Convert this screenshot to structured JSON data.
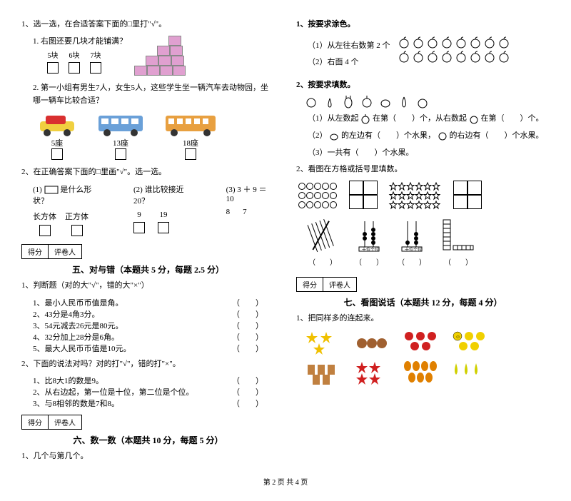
{
  "left": {
    "q1": "1、选一选，在合适答案下面的□里打\"√\"。",
    "q1_1": "1. 右图还要几块才能铺满？",
    "q1_1_opts": [
      "5块",
      "6块",
      "7块"
    ],
    "q1_2": "2. 第一小组有男生7人，女生5人，这些学生坐一辆汽车去动物园，坐哪一辆车比较合适？",
    "seats": [
      "5座",
      "13座",
      "18座"
    ],
    "q2": "2、在正确答案下面的□里画\"√\"。选一选。",
    "q2_1_prefix": "(1) ",
    "q2_1": "是什么形状？",
    "q2_2": "(2) 谁比较接近20？",
    "q2_3": "(3) 3 ＋ 9 ＝ 10",
    "q2_opts1": [
      "长方体",
      "正方体"
    ],
    "q2_opts2": [
      "9",
      "19"
    ],
    "q2_opts3": [
      "8",
      "7"
    ],
    "score_labels": [
      "得分",
      "评卷人"
    ],
    "sec5": "五、对与错（本题共 5 分，每题 2.5 分）",
    "tf_intro": "1、判断题（对的大\"√\"，错的大\"×\"）",
    "tf1": "1、最小人民币币值是角。",
    "tf2": "2、43分是4角3分。",
    "tf3": "3、54元减去26元是80元。",
    "tf4": "4、32分加上28分是6角。",
    "tf5": "5、最大人民币币值是10元。",
    "tf_intro2": "2、下面的说法对吗？对的打\"√\"，错的打\"×\"。",
    "tf6": "1、比8大1的数是9。",
    "tf7": "2、从右边起，第一位是十位，第二位是个位。",
    "tf8": "3、与8相邻的数是7和8。",
    "sec6": "六、数一数（本题共 10 分，每题 5 分）",
    "q6_1": "1、几个与第几个。"
  },
  "right": {
    "r1": "1、按要求涂色。",
    "r1_1": "（1）从左往右数第 2 个",
    "r1_2": "（2）右面 4 个",
    "r2": "2、按要求填数。",
    "r2_1a": "（1）从左数起",
    "r2_1b": "在第（　　）个，从右数起",
    "r2_1c": "在第（　　）个。",
    "r2_2a": "（2）",
    "r2_2b": "的左边有（　　）个水果，",
    "r2_2c": "的右边有（　　）个水果。",
    "r2_3": "（3）一共有（　　）个水果。",
    "r3": "2、看图在方格或括号里填数。",
    "sec7": "七、看图说话（本题共 12 分，每题 4 分）",
    "r7_1": "1、把同样多的连起来。"
  },
  "footer": "第 2 页  共 4 页",
  "colors": {
    "stair": "#e0a0d0",
    "car_red": "#d93030",
    "bus_blue": "#6aa0d8",
    "bus_orange": "#e8a040",
    "apple_stroke": "#000",
    "star_fill": "#fff"
  }
}
